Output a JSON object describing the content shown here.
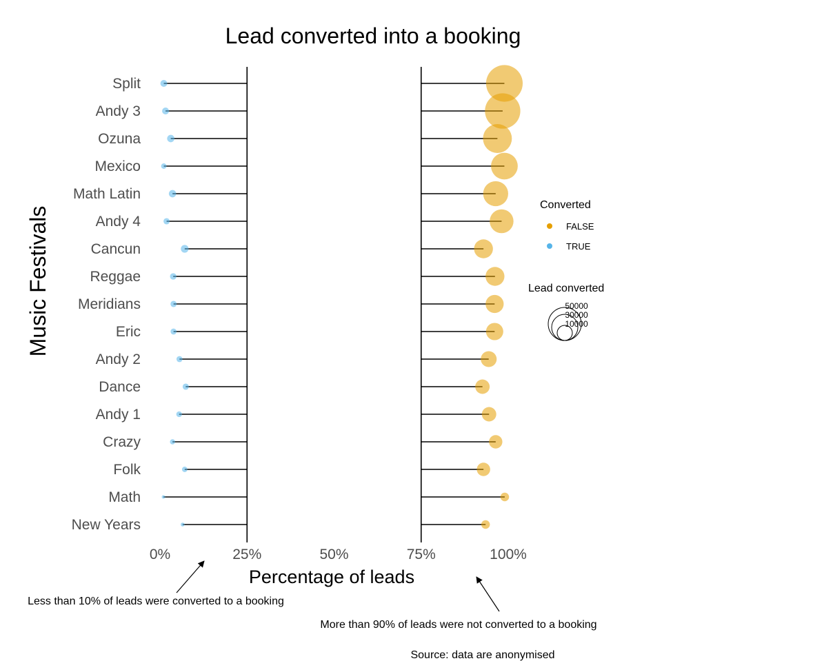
{
  "chart_data": {
    "type": "scatter",
    "title": "Lead converted into a booking",
    "xlabel": "Percentage of leads",
    "ylabel": "Music Festivals",
    "x_ticks": [
      "0%",
      "25%",
      "50%",
      "75%",
      "100%"
    ],
    "xlim": [
      0,
      100
    ],
    "grid": false,
    "categories": [
      "Split",
      "Andy 3",
      "Ozuna",
      "Mexico",
      "Math Latin",
      "Andy 4",
      "Cancun",
      "Reggae",
      "Meridians",
      "Eric",
      "Andy 2",
      "Dance",
      "Andy 1",
      "Crazy",
      "Folk",
      "Math",
      "New Years"
    ],
    "series": [
      {
        "name": "TRUE",
        "color": "#56B4E9",
        "x": [
          1.1,
          1.6,
          3.1,
          1.1,
          3.6,
          1.9,
          7.1,
          3.8,
          3.9,
          3.9,
          5.6,
          7.4,
          5.5,
          3.6,
          7.1,
          1.0,
          6.5
        ],
        "lead_count": [
          1600,
          1600,
          1800,
          1000,
          1800,
          1300,
          2000,
          1400,
          1300,
          1200,
          1200,
          1300,
          1100,
          900,
          1000,
          100,
          500
        ]
      },
      {
        "name": "FALSE",
        "color": "#E69F00",
        "x": [
          98.9,
          98.4,
          96.9,
          98.9,
          96.4,
          98.1,
          92.9,
          96.2,
          96.1,
          96.1,
          94.4,
          92.6,
          94.5,
          96.4,
          92.9,
          99.0,
          93.5
        ],
        "lead_count": [
          45000,
          42000,
          28000,
          24000,
          21000,
          19000,
          12000,
          12000,
          11000,
          10000,
          8500,
          7000,
          7000,
          6000,
          6000,
          2500,
          2500
        ]
      }
    ],
    "legend": {
      "position": "right",
      "color_title": "Converted",
      "color_entries": [
        {
          "label": "FALSE",
          "color": "#E69F00"
        },
        {
          "label": "TRUE",
          "color": "#56B4E9"
        }
      ],
      "size_title": "Lead converted",
      "size_entries": [
        50000,
        30000,
        10000
      ],
      "size_labels": [
        "50000",
        "30000",
        "10000"
      ]
    },
    "annotations": [
      "Less than 10% of leads were converted to a booking",
      "More than 90% of leads were not converted to a booking"
    ],
    "caption": "Source: data are anonymised"
  }
}
